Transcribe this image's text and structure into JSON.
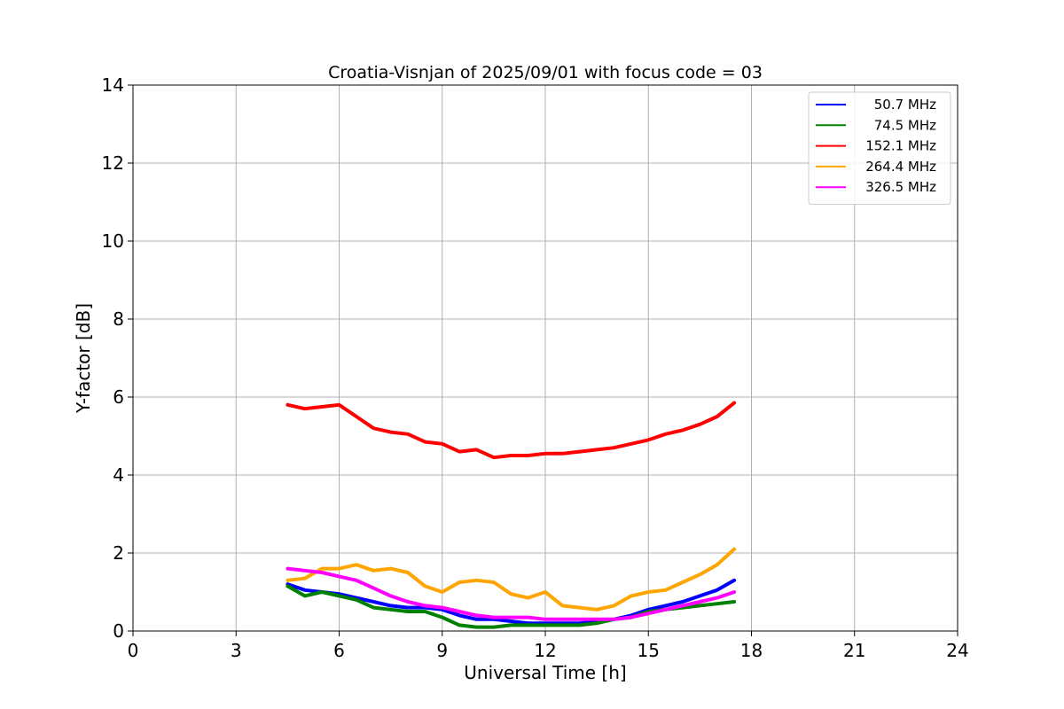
{
  "chart_data": {
    "type": "line",
    "title": "Croatia-Visnjan of 2025/09/01 with focus code = 03",
    "xlabel": "Universal Time [h]",
    "ylabel": "Y-factor [dB]",
    "xlim": [
      0,
      24
    ],
    "ylim": [
      0,
      14
    ],
    "xticks": [
      "0",
      "3",
      "6",
      "9",
      "12",
      "15",
      "18",
      "21",
      "24"
    ],
    "yticks": [
      "0",
      "2",
      "4",
      "6",
      "8",
      "10",
      "12",
      "14"
    ],
    "grid": true,
    "legend_position": "top-right",
    "series": [
      {
        "name": "50.7 MHz",
        "color": "#0000ff",
        "x": [
          4.5,
          5.0,
          5.5,
          6.0,
          6.5,
          7.0,
          7.5,
          8.0,
          8.5,
          9.0,
          9.5,
          10.0,
          10.5,
          11.0,
          11.5,
          12.0,
          12.5,
          13.0,
          13.5,
          14.0,
          14.5,
          15.0,
          15.5,
          16.0,
          16.5,
          17.0,
          17.5
        ],
        "y": [
          1.2,
          1.05,
          1.0,
          0.95,
          0.85,
          0.75,
          0.65,
          0.6,
          0.6,
          0.55,
          0.4,
          0.3,
          0.3,
          0.25,
          0.2,
          0.2,
          0.2,
          0.2,
          0.25,
          0.3,
          0.4,
          0.55,
          0.65,
          0.75,
          0.9,
          1.05,
          1.3
        ]
      },
      {
        "name": "74.5 MHz",
        "color": "#008000",
        "x": [
          4.5,
          5.0,
          5.5,
          6.0,
          6.5,
          7.0,
          7.5,
          8.0,
          8.5,
          9.0,
          9.5,
          10.0,
          10.5,
          11.0,
          11.5,
          12.0,
          12.5,
          13.0,
          13.5,
          14.0,
          14.5,
          15.0,
          15.5,
          16.0,
          16.5,
          17.0,
          17.5
        ],
        "y": [
          1.15,
          0.9,
          1.0,
          0.9,
          0.8,
          0.6,
          0.55,
          0.5,
          0.5,
          0.35,
          0.15,
          0.1,
          0.1,
          0.15,
          0.15,
          0.15,
          0.15,
          0.15,
          0.2,
          0.3,
          0.35,
          0.5,
          0.55,
          0.6,
          0.65,
          0.7,
          0.75
        ]
      },
      {
        "name": "152.1 MHz",
        "color": "#ff0000",
        "x": [
          4.5,
          5.0,
          5.5,
          6.0,
          6.5,
          7.0,
          7.5,
          8.0,
          8.5,
          9.0,
          9.5,
          10.0,
          10.5,
          11.0,
          11.5,
          12.0,
          12.5,
          13.0,
          13.5,
          14.0,
          14.5,
          15.0,
          15.5,
          16.0,
          16.5,
          17.0,
          17.5
        ],
        "y": [
          5.8,
          5.7,
          5.75,
          5.8,
          5.5,
          5.2,
          5.1,
          5.05,
          4.85,
          4.8,
          4.6,
          4.65,
          4.45,
          4.5,
          4.5,
          4.55,
          4.55,
          4.6,
          4.65,
          4.7,
          4.8,
          4.9,
          5.05,
          5.15,
          5.3,
          5.5,
          5.85
        ]
      },
      {
        "name": "264.4 MHz",
        "color": "#ffa500",
        "x": [
          4.5,
          5.0,
          5.5,
          6.0,
          6.5,
          7.0,
          7.5,
          8.0,
          8.5,
          9.0,
          9.5,
          10.0,
          10.5,
          11.0,
          11.5,
          12.0,
          12.5,
          13.0,
          13.5,
          14.0,
          14.5,
          15.0,
          15.5,
          16.0,
          16.5,
          17.0,
          17.5
        ],
        "y": [
          1.3,
          1.35,
          1.6,
          1.6,
          1.7,
          1.55,
          1.6,
          1.5,
          1.15,
          1.0,
          1.25,
          1.3,
          1.25,
          0.95,
          0.85,
          1.0,
          0.65,
          0.6,
          0.55,
          0.65,
          0.9,
          1.0,
          1.05,
          1.25,
          1.45,
          1.7,
          2.1
        ]
      },
      {
        "name": "326.5 MHz",
        "color": "#ff00ff",
        "x": [
          4.5,
          5.0,
          5.5,
          6.0,
          6.5,
          7.0,
          7.5,
          8.0,
          8.5,
          9.0,
          9.5,
          10.0,
          10.5,
          11.0,
          11.5,
          12.0,
          12.5,
          13.0,
          13.5,
          14.0,
          14.5,
          15.0,
          15.5,
          16.0,
          16.5,
          17.0,
          17.5
        ],
        "y": [
          1.6,
          1.55,
          1.5,
          1.4,
          1.3,
          1.1,
          0.9,
          0.75,
          0.65,
          0.6,
          0.5,
          0.4,
          0.35,
          0.35,
          0.35,
          0.3,
          0.3,
          0.3,
          0.3,
          0.3,
          0.35,
          0.45,
          0.55,
          0.65,
          0.75,
          0.85,
          1.0
        ]
      }
    ]
  }
}
